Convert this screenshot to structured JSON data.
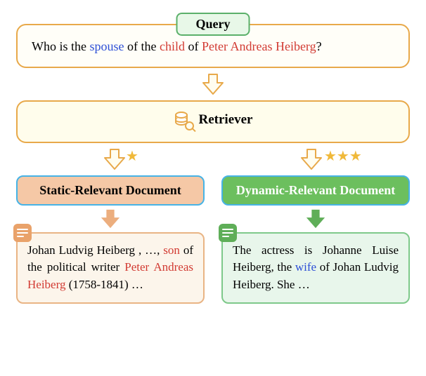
{
  "colors": {
    "highlight_blue": "#2d4fd6",
    "highlight_red": "#d23b33",
    "arrow_stroke": "#e8a94a",
    "arrow_fill": "#fffdf0",
    "star": "#f0b93a"
  },
  "query": {
    "tag": "Query",
    "parts": [
      {
        "text": "Who is the ",
        "color": "#000000"
      },
      {
        "text": "spouse",
        "color": "#2d4fd6"
      },
      {
        "text": " of the ",
        "color": "#000000"
      },
      {
        "text": "child",
        "color": "#d23b33"
      },
      {
        "text": " of ",
        "color": "#000000"
      },
      {
        "text": "Peter Andreas Heiberg",
        "color": "#d23b33"
      },
      {
        "text": "?",
        "color": "#000000"
      }
    ]
  },
  "retriever": {
    "label": "Retriever"
  },
  "branches": {
    "left": {
      "stars": 1,
      "header": "Static-Relevant Document",
      "body_parts": [
        {
          "text": "Johan Ludvig Heiberg , …, ",
          "color": "#000000"
        },
        {
          "text": "son",
          "color": "#d23b33"
        },
        {
          "text": " of the political writer ",
          "color": "#000000"
        },
        {
          "text": "Peter Andreas Heiberg",
          "color": "#d23b33"
        },
        {
          "text": " (1758-1841) …",
          "color": "#000000"
        }
      ]
    },
    "right": {
      "stars": 3,
      "header": "Dynamic-Relevant Document",
      "body_parts": [
        {
          "text": "The actress is Johanne Luise Heiberg, the ",
          "color": "#000000"
        },
        {
          "text": "wife",
          "color": "#2d4fd6"
        },
        {
          "text": " of Johan Ludvig Heiberg. She …",
          "color": "#000000"
        }
      ]
    }
  }
}
